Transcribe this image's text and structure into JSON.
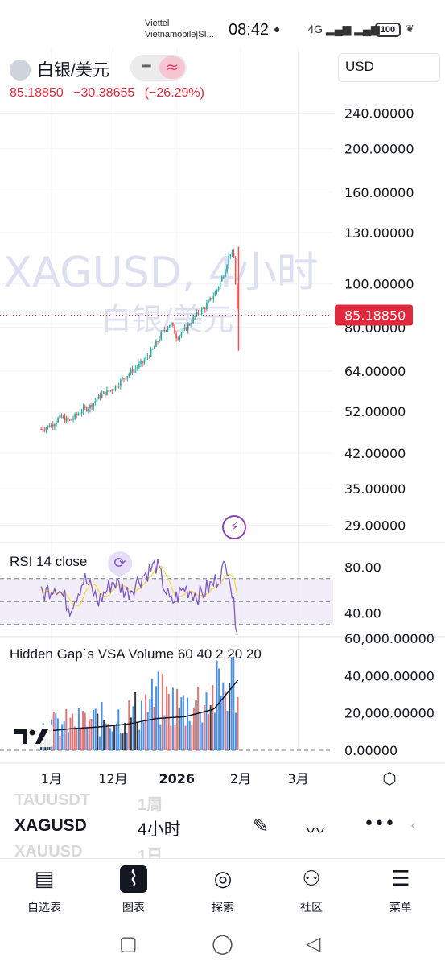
{
  "status_bar": {
    "carrier1": "Viettel",
    "carrier2": "Vietnamobile|SI...",
    "time": "08:42",
    "network": "4G",
    "battery": "100"
  },
  "header": {
    "symbol_name": "白银/美元",
    "currency": "USD",
    "price": "85.18850",
    "change": "−30.38655",
    "change_pct": "(−26.29%)",
    "watermark_line1": "XAGUSD, 4小时",
    "watermark_line2": "白银/美元"
  },
  "colors": {
    "up": "#26a69a",
    "down": "#ef5350",
    "price_tag": "#e0293d",
    "rsi": "#7e57c2",
    "rsi_ma": "#f5d742",
    "vol_black": "#131722",
    "vol_blue": "#2a7de1",
    "vol_red": "#e05a5a"
  },
  "chart_data": [
    {
      "type": "line",
      "name": "price",
      "y_scale": "log",
      "ylim": [
        27,
        270
      ],
      "y_ticks": [
        "240.00000",
        "200.00000",
        "160.00000",
        "130.00000",
        "100.00000",
        "80.00000",
        "64.00000",
        "52.00000",
        "42.00000",
        "35.00000",
        "29.00000"
      ],
      "x_ticks": [
        "1月",
        "12月",
        "2026",
        "2月",
        "3月"
      ],
      "last_price_label": "85.18850",
      "x": [
        "2025-10-27",
        "2025-11-01",
        "2025-11-05",
        "2025-11-10",
        "2025-11-15",
        "2025-11-20",
        "2025-11-25",
        "2025-12-01",
        "2025-12-05",
        "2025-12-10",
        "2025-12-15",
        "2025-12-20",
        "2025-12-25",
        "2025-12-29",
        "2026-01-01",
        "2026-01-05",
        "2026-01-10",
        "2026-01-15",
        "2026-01-20",
        "2026-01-24",
        "2026-01-27",
        "2026-01-29",
        "2026-01-30",
        "2026-01-31"
      ],
      "values": [
        47.5,
        48.5,
        50.5,
        49.5,
        52,
        53.5,
        56.5,
        58.5,
        61,
        64,
        66.5,
        71,
        78,
        82,
        76,
        79,
        85,
        89,
        96,
        106,
        118,
        113,
        89,
        85.19
      ]
    },
    {
      "type": "line",
      "name": "RSI 14 close",
      "ylim": [
        20,
        100
      ],
      "y_ticks": [
        "80.00",
        "40.00"
      ],
      "bands": [
        70,
        50,
        30
      ],
      "x": [
        "2025-10-27",
        "2025-11-03",
        "2025-11-10",
        "2025-11-17",
        "2025-11-24",
        "2025-12-01",
        "2025-12-08",
        "2025-12-15",
        "2025-12-22",
        "2025-12-29",
        "2026-01-05",
        "2026-01-12",
        "2026-01-19",
        "2026-01-26",
        "2026-01-29",
        "2026-01-31"
      ],
      "values": [
        55,
        65,
        45,
        70,
        50,
        68,
        58,
        72,
        82,
        48,
        62,
        55,
        66,
        84,
        40,
        24
      ]
    },
    {
      "type": "bar",
      "name": "Hidden Gap`s VSA Volume 60 40 2 20 20",
      "ylim": [
        0,
        60000
      ],
      "y_ticks": [
        "60,000.00000",
        "40,000.00000",
        "20,000.00000",
        "0.00000"
      ],
      "x": [
        "2025-10-27",
        "2025-11-10",
        "2025-11-24",
        "2025-12-08",
        "2025-12-22",
        "2026-01-05",
        "2026-01-19",
        "2026-01-31"
      ],
      "values": [
        15000,
        17000,
        19000,
        22000,
        32000,
        27000,
        35000,
        46000
      ],
      "avg_values": [
        10000,
        11500,
        12500,
        14000,
        17000,
        18000,
        22000,
        38000
      ]
    }
  ],
  "toolbar": {
    "symbol": "XAGUSD",
    "timeframe": "4小时",
    "ghost_symbol_above": "TAUUSDT",
    "ghost_tf_above": "1周",
    "ghost_symbol_below": "XAUUSD",
    "ghost_tf_below": "1日"
  },
  "bottom_nav": [
    {
      "label": "自选表",
      "icon": "watchlist-icon"
    },
    {
      "label": "图表",
      "icon": "chart-icon"
    },
    {
      "label": "探索",
      "icon": "compass-icon"
    },
    {
      "label": "社区",
      "icon": "community-icon"
    },
    {
      "label": "菜单",
      "icon": "menu-icon"
    }
  ]
}
